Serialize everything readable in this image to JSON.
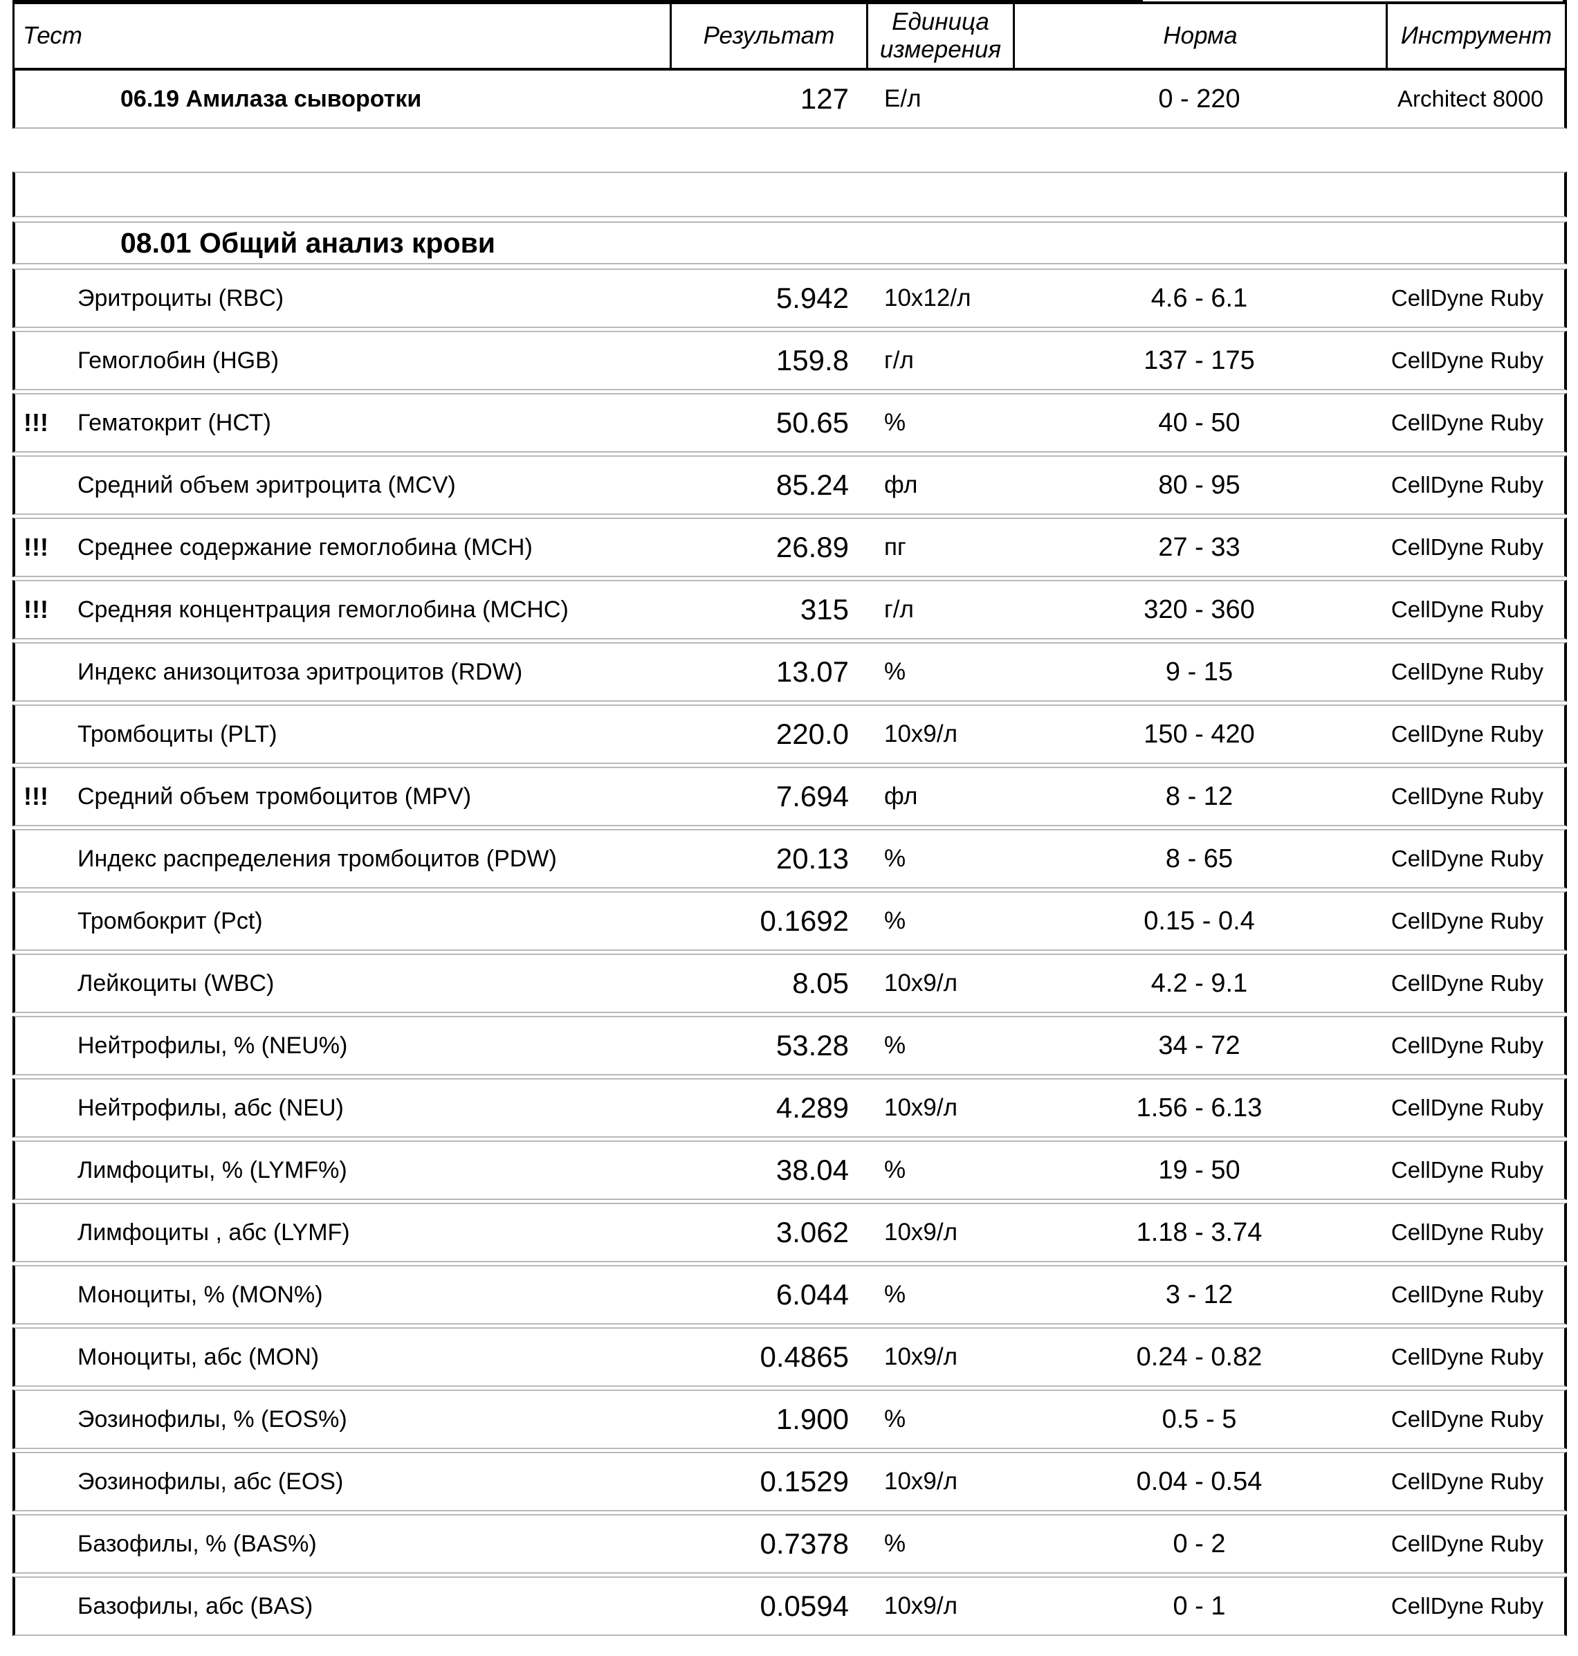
{
  "header": {
    "col_test": "Тест",
    "col_result": "Результат",
    "col_unit_line1": "Единица",
    "col_unit_line2": "измерения",
    "col_norm": "Норма",
    "col_instrument": "Инструмент"
  },
  "table1": {
    "row": {
      "title": "06.19 Амилаза сыворотки",
      "result": "127",
      "unit": "Е/л",
      "norm": "0 - 220",
      "instrument": "Architect 8000"
    }
  },
  "table2": {
    "section_title": "08.01 Общий анализ крови",
    "rows": [
      {
        "flag": "",
        "name": "Эритроциты (RBC)",
        "result": "5.942",
        "unit": "10х12/л",
        "norm": "4.6 - 6.1",
        "instrument": "CellDyne Ruby"
      },
      {
        "flag": "",
        "name": "Гемоглобин (HGB)",
        "result": "159.8",
        "unit": "г/л",
        "norm": "137 - 175",
        "instrument": "CellDyne Ruby"
      },
      {
        "flag": "!!!",
        "name": "Гематокрит (НСТ)",
        "result": "50.65",
        "unit": "%",
        "norm": "40 - 50",
        "instrument": "CellDyne Ruby"
      },
      {
        "flag": "",
        "name": "Средний объем эритроцита (MCV)",
        "result": "85.24",
        "unit": "фл",
        "norm": "80 - 95",
        "instrument": "CellDyne Ruby"
      },
      {
        "flag": "!!!",
        "name": "Среднее содержание гемоглобина (MCH)",
        "result": "26.89",
        "unit": "пг",
        "norm": "27 - 33",
        "instrument": "CellDyne Ruby"
      },
      {
        "flag": "!!!",
        "name": "Средняя концентрация гемоглобина (MCHC)",
        "result": "315",
        "unit": "г/л",
        "norm": "320 - 360",
        "instrument": "CellDyne Ruby"
      },
      {
        "flag": "",
        "name": "Индекс анизоцитоза эритроцитов (RDW)",
        "result": "13.07",
        "unit": "%",
        "norm": "9 - 15",
        "instrument": "CellDyne Ruby"
      },
      {
        "flag": "",
        "name": "Тромбоциты (PLT)",
        "result": "220.0",
        "unit": "10х9/л",
        "norm": "150 - 420",
        "instrument": "CellDyne Ruby"
      },
      {
        "flag": "!!!",
        "name": "Средний объем тромбоцитов (MPV)",
        "result": "7.694",
        "unit": "фл",
        "norm": "8 - 12",
        "instrument": "CellDyne Ruby"
      },
      {
        "flag": "",
        "name": "Индекс распределения тромбоцитов (PDW)",
        "result": "20.13",
        "unit": "%",
        "norm": "8 - 65",
        "instrument": "CellDyne Ruby"
      },
      {
        "flag": "",
        "name": "Тромбокрит (Pct)",
        "result": "0.1692",
        "unit": "%",
        "norm": "0.15 - 0.4",
        "instrument": "CellDyne Ruby"
      },
      {
        "flag": "",
        "name": "Лейкоциты (WBC)",
        "result": "8.05",
        "unit": "10х9/л",
        "norm": "4.2 - 9.1",
        "instrument": "CellDyne Ruby"
      },
      {
        "flag": "",
        "name": "Нейтрофилы, % (NEU%)",
        "result": "53.28",
        "unit": "%",
        "norm": "34 - 72",
        "instrument": "CellDyne Ruby"
      },
      {
        "flag": "",
        "name": "Нейтрофилы, абс (NEU)",
        "result": "4.289",
        "unit": "10х9/л",
        "norm": "1.56 - 6.13",
        "instrument": "CellDyne Ruby"
      },
      {
        "flag": "",
        "name": "Лимфоциты, % (LYMF%)",
        "result": "38.04",
        "unit": "%",
        "norm": "19 - 50",
        "instrument": "CellDyne Ruby"
      },
      {
        "flag": "",
        "name": "Лимфоциты , абс (LYMF)",
        "result": "3.062",
        "unit": "10х9/л",
        "norm": "1.18 - 3.74",
        "instrument": "CellDyne Ruby"
      },
      {
        "flag": "",
        "name": "Моноциты, % (MON%)",
        "result": "6.044",
        "unit": "%",
        "norm": "3 - 12",
        "instrument": "CellDyne Ruby"
      },
      {
        "flag": "",
        "name": "Моноциты, абс (MON)",
        "result": "0.4865",
        "unit": "10х9/л",
        "norm": "0.24 - 0.82",
        "instrument": "CellDyne Ruby"
      },
      {
        "flag": "",
        "name": "Эозинофилы, % (EOS%)",
        "result": "1.900",
        "unit": "%",
        "norm": "0.5 - 5",
        "instrument": "CellDyne Ruby"
      },
      {
        "flag": "",
        "name": "Эозинофилы, абс (EOS)",
        "result": "0.1529",
        "unit": "10х9/л",
        "norm": "0.04 - 0.54",
        "instrument": "CellDyne Ruby"
      },
      {
        "flag": "",
        "name": "Базофилы, % (BAS%)",
        "result": "0.7378",
        "unit": "%",
        "norm": "0 - 2",
        "instrument": "CellDyne Ruby"
      },
      {
        "flag": "",
        "name": "Базофилы, абс (BAS)",
        "result": "0.0594",
        "unit": "10х9/л",
        "norm": "0 - 1",
        "instrument": "CellDyne Ruby"
      }
    ]
  }
}
